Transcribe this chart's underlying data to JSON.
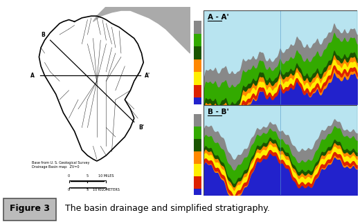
{
  "figure_bg": "#ffffff",
  "outer_bg": "#ffffff",
  "caption_label": "Figure 3",
  "caption_text": "  The basin drainage and simplified stratigraphy.",
  "label_A": "A - A'",
  "label_B": "B - B'",
  "sky_color": "#b8e4f0",
  "blue_base": "#2222cc",
  "orange_color": "#ff8800",
  "yellow_color": "#ffee00",
  "red_color": "#dd2200",
  "dark_green_color": "#1a5500",
  "green_color": "#33aa00",
  "gray_color": "#888888",
  "colorbar_colors_top": [
    "#888888",
    "#33aa00",
    "#1a5500",
    "#ff8800",
    "#ffee00",
    "#dd2200",
    "#2222cc"
  ],
  "colorbar_colors_bot": [
    "#888888",
    "#33aa00",
    "#1a5500",
    "#ff8800",
    "#ffee00",
    "#dd2200",
    "#2222cc"
  ],
  "map_coast_color": "#aaaaaa",
  "panel_border": "#444444",
  "border_color": "#aaaacc"
}
